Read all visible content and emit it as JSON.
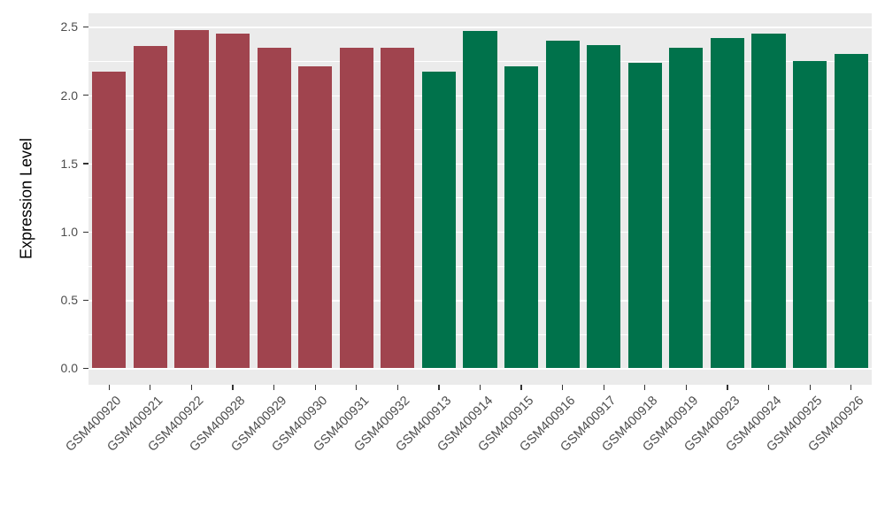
{
  "chart_data": {
    "type": "bar",
    "title": "",
    "xlabel": "",
    "ylabel": "Expression Level",
    "categories": [
      "GSM400920",
      "GSM400921",
      "GSM400922",
      "GSM400928",
      "GSM400929",
      "GSM400930",
      "GSM400931",
      "GSM400932",
      "GSM400913",
      "GSM400914",
      "GSM400915",
      "GSM400916",
      "GSM400917",
      "GSM400918",
      "GSM400919",
      "GSM400923",
      "GSM400924",
      "GSM400925",
      "GSM400926"
    ],
    "values": [
      2.17,
      2.36,
      2.48,
      2.45,
      2.35,
      2.21,
      2.35,
      2.35,
      2.17,
      2.47,
      2.21,
      2.4,
      2.37,
      2.24,
      2.35,
      2.42,
      2.45,
      2.25,
      2.3
    ],
    "bar_colors": [
      "#A0444E",
      "#A0444E",
      "#A0444E",
      "#A0444E",
      "#A0444E",
      "#A0444E",
      "#A0444E",
      "#A0444E",
      "#00724B",
      "#00724B",
      "#00724B",
      "#00724B",
      "#00724B",
      "#00724B",
      "#00724B",
      "#00724B",
      "#00724B",
      "#00724B",
      "#00724B"
    ],
    "groups": [
      {
        "name": "group-red",
        "color": "#A0444E",
        "category_count": 8
      },
      {
        "name": "group-green",
        "color": "#00724B",
        "category_count": 11
      }
    ],
    "yticks": [
      "0.0",
      "0.5",
      "1.0",
      "1.5",
      "2.0",
      "2.5"
    ],
    "ylim": [
      0,
      2.6
    ],
    "grid": true,
    "legend": "none",
    "panel_background": "#EBEBEB",
    "gridline_color": "#FFFFFF"
  }
}
